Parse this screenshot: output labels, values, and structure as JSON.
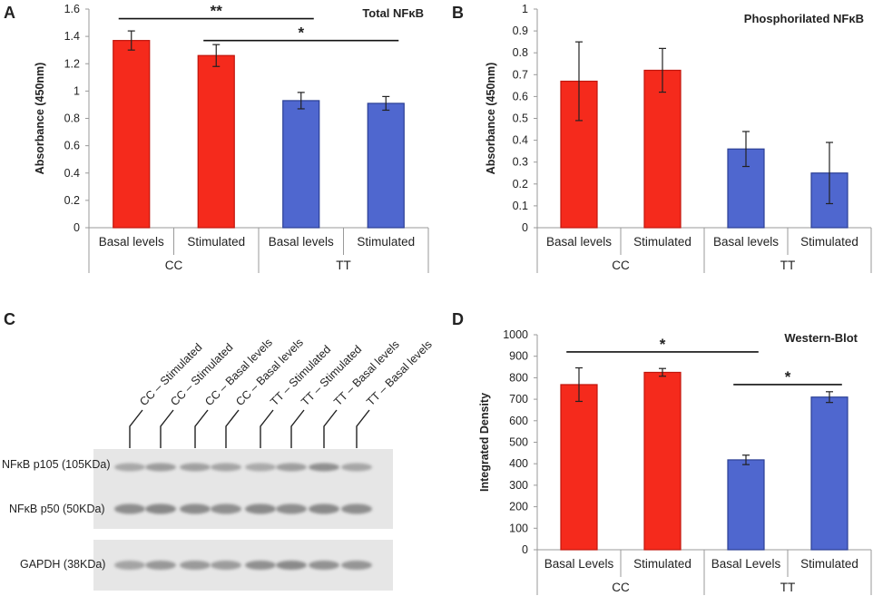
{
  "panels": {
    "A": "A",
    "B": "B",
    "C": "C",
    "D": "D"
  },
  "colors": {
    "red": "#f52a1c",
    "red_edge": "#c0150c",
    "blue": "#4f67cf",
    "blue_edge": "#2b3f94"
  },
  "chart_data": [
    {
      "id": "A",
      "type": "bar",
      "title": "Total NFκB",
      "ylabel": "Absorbance (450nm)",
      "ylim": [
        0,
        1.6
      ],
      "yticks": [
        0,
        0.2,
        0.4,
        0.6,
        0.8,
        1,
        1.2,
        1.4,
        1.6
      ],
      "ytick_labels": [
        "0",
        "0.2",
        "0.4",
        "0.6",
        "0.8",
        "1",
        "1.2",
        "1.4",
        "1.6"
      ],
      "categories": [
        "Basal levels",
        "Stimulated",
        "Basal levels",
        "Stimulated"
      ],
      "groups": [
        "CC",
        "TT"
      ],
      "values": [
        1.37,
        1.26,
        0.93,
        0.91
      ],
      "errors": [
        0.07,
        0.08,
        0.06,
        0.05
      ],
      "bar_colors": [
        "red",
        "red",
        "blue",
        "blue"
      ],
      "significance": [
        {
          "from": 0,
          "to": 2,
          "level": 1.53,
          "label": "**"
        },
        {
          "from": 1,
          "to": 3,
          "level": 1.37,
          "label": "*"
        }
      ]
    },
    {
      "id": "B",
      "type": "bar",
      "title": "Phosphorilated NFκB",
      "ylabel": "Absorbance (450nm)",
      "ylim": [
        0,
        1
      ],
      "yticks": [
        0,
        0.1,
        0.2,
        0.3,
        0.4,
        0.5,
        0.6,
        0.7,
        0.8,
        0.9,
        1
      ],
      "ytick_labels": [
        "0",
        "0.1",
        "0.2",
        "0.3",
        "0.4",
        "0.5",
        "0.6",
        "0.7",
        "0.8",
        "0.9",
        "1"
      ],
      "categories": [
        "Basal levels",
        "Stimulated",
        "Basal levels",
        "Stimulated"
      ],
      "groups": [
        "CC",
        "TT"
      ],
      "values": [
        0.67,
        0.72,
        0.36,
        0.25
      ],
      "errors": [
        0.18,
        0.1,
        0.08,
        0.14
      ],
      "bar_colors": [
        "red",
        "red",
        "blue",
        "blue"
      ],
      "significance": []
    },
    {
      "id": "D",
      "type": "bar",
      "title": "Western-Blot",
      "ylabel": "Integrated Density",
      "ylim": [
        0,
        1000
      ],
      "yticks": [
        0,
        100,
        200,
        300,
        400,
        500,
        600,
        700,
        800,
        900,
        1000
      ],
      "ytick_labels": [
        "0",
        "100",
        "200",
        "300",
        "400",
        "500",
        "600",
        "700",
        "800",
        "900",
        "1000"
      ],
      "categories": [
        "Basal Levels",
        "Stimulated",
        "Basal Levels",
        "Stimulated"
      ],
      "groups": [
        "CC",
        "TT"
      ],
      "values": [
        768,
        825,
        418,
        710
      ],
      "errors": [
        78,
        18,
        22,
        25
      ],
      "bar_colors": [
        "red",
        "red",
        "blue",
        "blue"
      ],
      "significance": [
        {
          "from": 0,
          "to": 2,
          "level": 920,
          "label": "*"
        },
        {
          "from": 2,
          "to": 3,
          "level": 768,
          "label": "*"
        }
      ]
    }
  ],
  "western_blot": {
    "lanes": [
      "CC – Stimulated",
      "CC – Stimulated",
      "CC – Basal levels",
      "CC – Basal levels",
      "TT – Stimulated",
      "TT – Stimulated",
      "TT – Basal levels",
      "TT – Basal levels"
    ],
    "bands": [
      "NFκB p105 (105KDa)",
      "NFκB p50 (50KDa)",
      "GAPDH (38KDa)"
    ]
  }
}
